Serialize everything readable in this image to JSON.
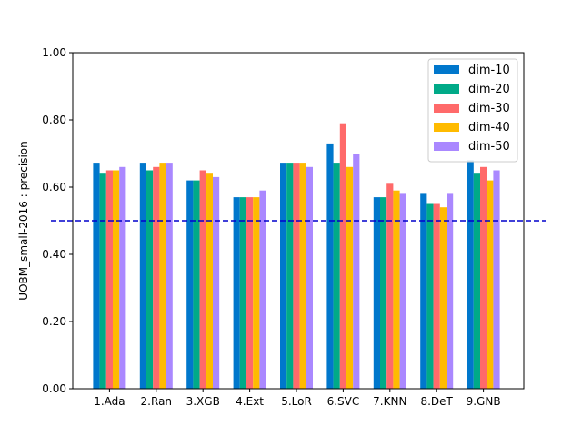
{
  "chart_data": {
    "type": "bar",
    "title": "",
    "xlabel": "",
    "ylabel": "UOBM_small-2016 : precision",
    "ylim": [
      0,
      1
    ],
    "yticks": [
      "0.00",
      "0.20",
      "0.40",
      "0.60",
      "0.80",
      "1.00"
    ],
    "categories": [
      "1.Ada",
      "2.Ran",
      "3.XGB",
      "4.Ext",
      "5.LoR",
      "6.SVC",
      "7.KNN",
      "8.DeT",
      "9.GNB"
    ],
    "series": [
      {
        "name": "dim-10",
        "color": "#0077cc",
        "values": [
          0.67,
          0.67,
          0.62,
          0.57,
          0.67,
          0.73,
          0.57,
          0.58,
          0.68
        ]
      },
      {
        "name": "dim-20",
        "color": "#00aa88",
        "values": [
          0.64,
          0.65,
          0.62,
          0.57,
          0.67,
          0.67,
          0.57,
          0.55,
          0.64
        ]
      },
      {
        "name": "dim-30",
        "color": "#ff6a6a",
        "values": [
          0.65,
          0.66,
          0.65,
          0.57,
          0.67,
          0.79,
          0.61,
          0.55,
          0.66
        ]
      },
      {
        "name": "dim-40",
        "color": "#ffbb00",
        "values": [
          0.65,
          0.67,
          0.64,
          0.57,
          0.67,
          0.66,
          0.59,
          0.54,
          0.62
        ]
      },
      {
        "name": "dim-50",
        "color": "#aa88ff",
        "values": [
          0.66,
          0.67,
          0.63,
          0.59,
          0.66,
          0.7,
          0.58,
          0.58,
          0.65
        ]
      }
    ],
    "reference_line": {
      "y": 0.5,
      "color": "#0000cc",
      "style": "dashed"
    },
    "legend_position": "top-right",
    "grid": false
  }
}
